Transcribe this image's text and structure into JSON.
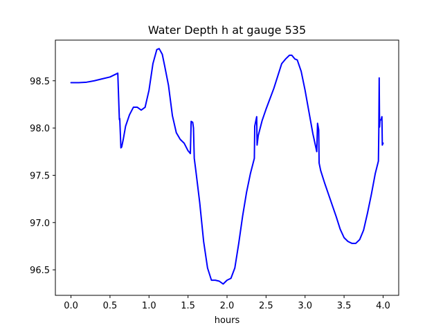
{
  "chart_data": {
    "type": "line",
    "title": "Water Depth h at gauge 535",
    "xlabel": "hours",
    "ylabel": "",
    "xlim": [
      -0.2,
      4.2
    ],
    "ylim": [
      96.23,
      98.93
    ],
    "xticks": [
      0.0,
      0.5,
      1.0,
      1.5,
      2.0,
      2.5,
      3.0,
      3.5,
      4.0
    ],
    "xtick_labels": [
      "0.0",
      "0.5",
      "1.0",
      "1.5",
      "2.0",
      "2.5",
      "3.0",
      "3.5",
      "4.0"
    ],
    "yticks": [
      96.5,
      97.0,
      97.5,
      98.0,
      98.5
    ],
    "ytick_labels": [
      "96.5",
      "97.0",
      "97.5",
      "98.0",
      "98.5"
    ],
    "grid": false,
    "series": [
      {
        "color": "#0000ff",
        "x": [
          0.0,
          0.1,
          0.2,
          0.3,
          0.4,
          0.5,
          0.55,
          0.6,
          0.62,
          0.625,
          0.64,
          0.65,
          0.67,
          0.7,
          0.75,
          0.8,
          0.85,
          0.9,
          0.95,
          1.0,
          1.05,
          1.1,
          1.13,
          1.17,
          1.2,
          1.25,
          1.3,
          1.35,
          1.4,
          1.45,
          1.5,
          1.53,
          1.54,
          1.56,
          1.57,
          1.58,
          1.6,
          1.65,
          1.7,
          1.75,
          1.8,
          1.85,
          1.9,
          1.95,
          2.0,
          2.05,
          2.1,
          2.15,
          2.2,
          2.25,
          2.3,
          2.35,
          2.355,
          2.38,
          2.385,
          2.4,
          2.45,
          2.5,
          2.55,
          2.6,
          2.65,
          2.7,
          2.75,
          2.8,
          2.83,
          2.87,
          2.9,
          2.95,
          3.0,
          3.05,
          3.1,
          3.15,
          3.16,
          3.175,
          3.18,
          3.2,
          3.25,
          3.3,
          3.35,
          3.4,
          3.45,
          3.5,
          3.55,
          3.6,
          3.65,
          3.7,
          3.75,
          3.8,
          3.85,
          3.9,
          3.94,
          3.945,
          3.95,
          3.955,
          3.96,
          3.975,
          3.985,
          3.99,
          4.0
        ],
        "y": [
          98.48,
          98.48,
          98.485,
          98.5,
          98.52,
          98.54,
          98.56,
          98.58,
          98.09,
          98.1,
          97.79,
          97.8,
          97.88,
          98.02,
          98.14,
          98.22,
          98.22,
          98.19,
          98.22,
          98.4,
          98.68,
          98.83,
          98.84,
          98.78,
          98.66,
          98.45,
          98.13,
          97.95,
          97.88,
          97.84,
          97.76,
          97.73,
          98.07,
          98.06,
          98.0,
          97.68,
          97.55,
          97.21,
          96.8,
          96.52,
          96.39,
          96.39,
          96.38,
          96.35,
          96.39,
          96.41,
          96.52,
          96.78,
          97.07,
          97.32,
          97.52,
          97.68,
          98.02,
          98.12,
          97.82,
          97.92,
          98.08,
          98.2,
          98.31,
          98.42,
          98.55,
          98.68,
          98.73,
          98.77,
          98.77,
          98.73,
          98.72,
          98.6,
          98.4,
          98.17,
          97.94,
          97.75,
          98.05,
          97.98,
          97.63,
          97.55,
          97.42,
          97.3,
          97.18,
          97.06,
          96.93,
          96.84,
          96.8,
          96.78,
          96.78,
          96.82,
          96.92,
          97.1,
          97.3,
          97.52,
          97.65,
          97.96,
          98.53,
          98.01,
          98.08,
          98.09,
          98.12,
          97.82,
          97.84
        ]
      }
    ]
  }
}
